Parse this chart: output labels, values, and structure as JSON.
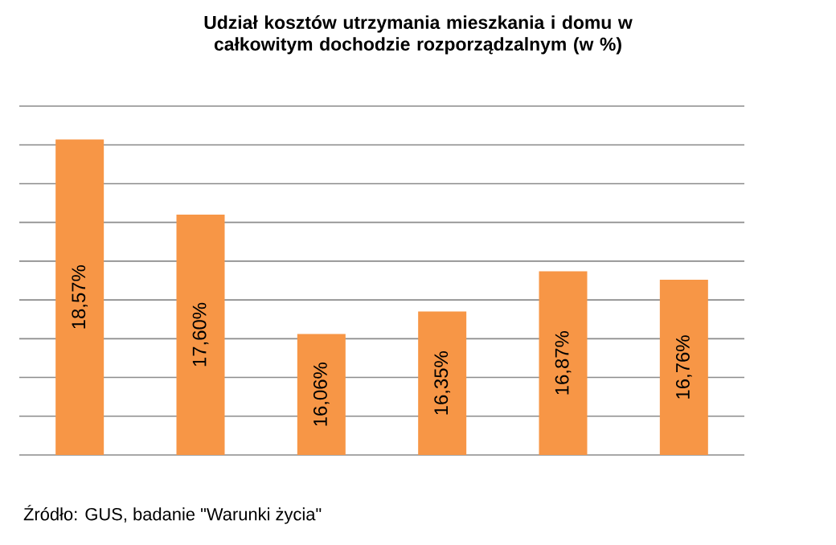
{
  "chart_data": {
    "type": "bar",
    "title": "Udział kosztów  utrzymania mieszkania i domu w całkowitym dochodzie rozporządzalnym (w %)",
    "categories": [
      null,
      null,
      null,
      null,
      null,
      null
    ],
    "values": [
      18.57,
      17.6,
      16.06,
      16.35,
      16.87,
      16.76
    ],
    "value_labels": [
      "18,57%",
      "17,60%",
      "16,06%",
      "16,35%",
      "16,87%",
      "16,76%"
    ],
    "color": "#f79646",
    "ylim": [
      14.5,
      19
    ],
    "yticks": [
      {
        "value": 14.5,
        "label": null
      },
      {
        "value": 15,
        "label": null
      },
      {
        "value": 15.5,
        "label": null
      },
      {
        "value": 16,
        "label": null
      },
      {
        "value": 16.5,
        "label": null
      },
      {
        "value": 17,
        "label": null
      },
      {
        "value": 17.5,
        "label": null
      },
      {
        "value": 18,
        "label": null
      },
      {
        "value": 18.5,
        "label": null
      },
      {
        "value": 19,
        "label": null
      }
    ],
    "grid": "y",
    "annotations": [
      "Źródło: GUS, badanie \"Warunki życia\""
    ]
  }
}
